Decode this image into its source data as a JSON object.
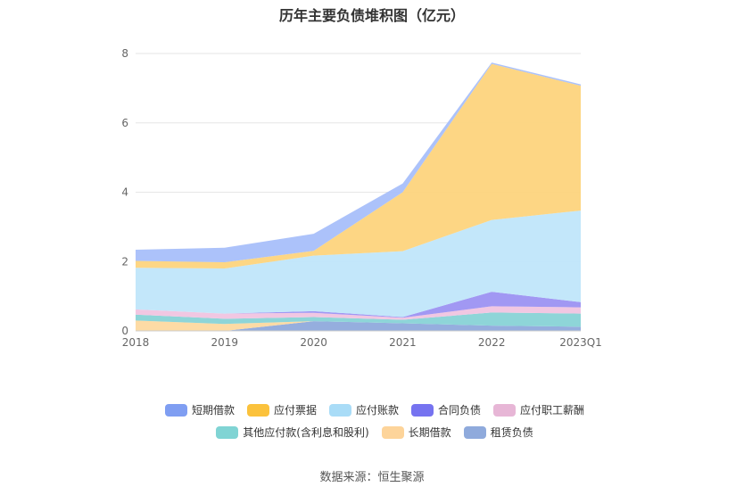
{
  "source_note": "数据来源：恒生聚源",
  "chart_data": {
    "type": "area",
    "stacked": true,
    "title": "历年主要负债堆积图（亿元）",
    "xlabel": "",
    "ylabel": "",
    "categories": [
      "2018",
      "2019",
      "2020",
      "2021",
      "2022",
      "2023Q1"
    ],
    "ylim": [
      0,
      8
    ],
    "yticks": [
      0,
      2,
      4,
      6,
      8
    ],
    "grid": true,
    "legend_position": "bottom",
    "series": [
      {
        "name": "租赁负债",
        "color": "#8faadc",
        "values": [
          0,
          0,
          0.28,
          0.22,
          0.15,
          0.12
        ]
      },
      {
        "name": "长期借款",
        "color": "#fdd9a0",
        "values": [
          0.3,
          0.2,
          0,
          0,
          0,
          0
        ]
      },
      {
        "name": "其他应付款(含利息和股利)",
        "color": "#88d3d6",
        "values": [
          0.17,
          0.15,
          0.12,
          0.1,
          0.38,
          0.38
        ]
      },
      {
        "name": "应付职工薪酬",
        "color": "#f0c4e0",
        "values": [
          0.15,
          0.15,
          0.12,
          0.06,
          0.18,
          0.18
        ]
      },
      {
        "name": "合同负债",
        "color": "#9c92f2",
        "values": [
          0,
          0,
          0.05,
          0.02,
          0.42,
          0.15
        ]
      },
      {
        "name": "应付账款",
        "color": "#c0e6fa",
        "values": [
          1.2,
          1.3,
          1.6,
          1.9,
          2.07,
          2.64
        ]
      },
      {
        "name": "应付票据",
        "color": "#fdd47d",
        "values": [
          0.2,
          0.18,
          0.14,
          1.7,
          4.5,
          3.6
        ]
      },
      {
        "name": "短期借款",
        "color": "#a8bffa",
        "values": [
          0.32,
          0.42,
          0.49,
          0.25,
          0.04,
          0.04
        ]
      }
    ],
    "legend": [
      {
        "name": "短期借款",
        "color": "#7f9ef2"
      },
      {
        "name": "应付票据",
        "color": "#fbc23c"
      },
      {
        "name": "应付账款",
        "color": "#a9dcf7"
      },
      {
        "name": "合同负债",
        "color": "#7673f0"
      },
      {
        "name": "应付职工薪酬",
        "color": "#e7b6d6"
      },
      {
        "name": "其他应付款(含利息和股利)",
        "color": "#80d4d4"
      },
      {
        "name": "长期借款",
        "color": "#fdd49a"
      },
      {
        "name": "租赁负债",
        "color": "#8faadc"
      }
    ]
  }
}
